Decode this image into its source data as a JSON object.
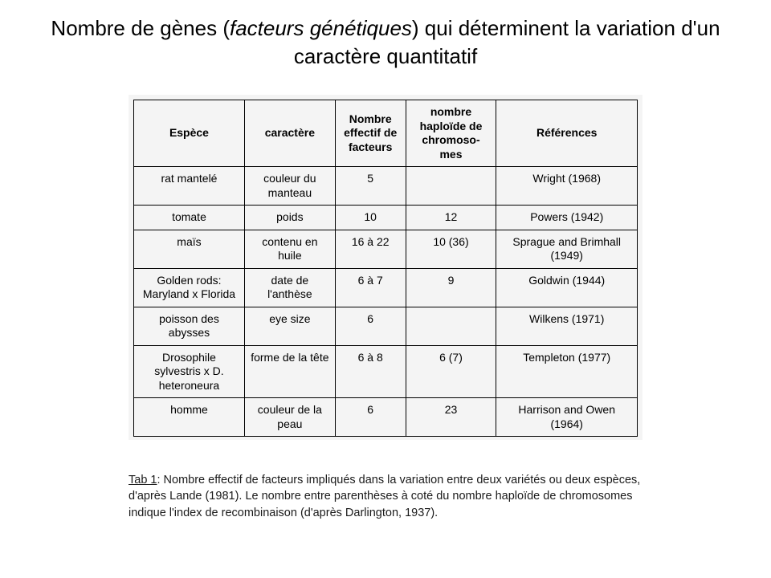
{
  "title": {
    "pre": "Nombre de gènes (",
    "ital": "facteurs génétiques",
    "post": ") qui déterminent la variation d'un caractère quantitatif"
  },
  "table": {
    "columns": [
      "Espèce",
      "caractère",
      "Nombre effectif de facteurs",
      "nombre haploïde de chromoso-mes",
      "Références"
    ],
    "col_widths_pct": [
      22,
      18,
      14,
      18,
      28
    ],
    "header_fontsize": 14,
    "cell_fontsize": 14,
    "border_color": "#000000",
    "background_color": "#f4f4f4",
    "text_align": "center",
    "rows": [
      [
        "rat mantelé",
        "couleur du manteau",
        "5",
        "",
        "Wright (1968)"
      ],
      [
        "tomate",
        "poids",
        "10",
        "12",
        "Powers (1942)"
      ],
      [
        "maïs",
        "contenu en huile",
        "16 à 22",
        "10 (36)",
        "Sprague and Brimhall (1949)"
      ],
      [
        "Golden rods: Maryland x Florida",
        "date de l'anthèse",
        "6 à 7",
        "9",
        "Goldwin (1944)"
      ],
      [
        "poisson des abysses",
        "eye size",
        "6",
        "",
        "Wilkens (1971)"
      ],
      [
        "Drosophile sylvestris x D. heteroneura",
        "forme de la tête",
        "6 à 8",
        "6 (7)",
        "Templeton (1977)"
      ],
      [
        "homme",
        "couleur de la peau",
        "6",
        "23",
        "Harrison and Owen (1964)"
      ]
    ]
  },
  "caption": {
    "lead": "Tab 1",
    "text": ": Nombre effectif de facteurs impliqués dans la variation entre deux variétés ou deux espèces, d'après Lande (1981). Le nombre entre parenthèses à coté du nombre haploïde de chromosomes indique l'index de recombinaison (d'après Darlington, 1937)."
  },
  "colors": {
    "page_background": "#ffffff",
    "text": "#000000",
    "table_background": "#f4f4f4",
    "table_border": "#000000"
  },
  "fonts": {
    "title_fontsize": 26,
    "body_fontsize": 14,
    "family": "Arial"
  }
}
